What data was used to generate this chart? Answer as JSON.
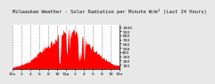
{
  "title": "Milwaukee Weather - Solar Radiation per Minute W/m² (Last 24 Hours)",
  "bg_color": "#e8e8e8",
  "plot_bg": "#ffffff",
  "bar_color": "#ff0000",
  "grid_color": "#888888",
  "n_points": 144,
  "peak_index": 75,
  "peak_value": 950,
  "x_labels": [
    "12a",
    "2",
    "4",
    "6",
    "8",
    "10",
    "12p",
    "2",
    "4",
    "6",
    "8",
    "10",
    "12a"
  ],
  "y_ticks": [
    100,
    200,
    300,
    400,
    500,
    600,
    700,
    800,
    900,
    1000
  ],
  "ylim": [
    0,
    1050
  ],
  "title_fontsize": 4.0,
  "tick_fontsize": 3.2
}
